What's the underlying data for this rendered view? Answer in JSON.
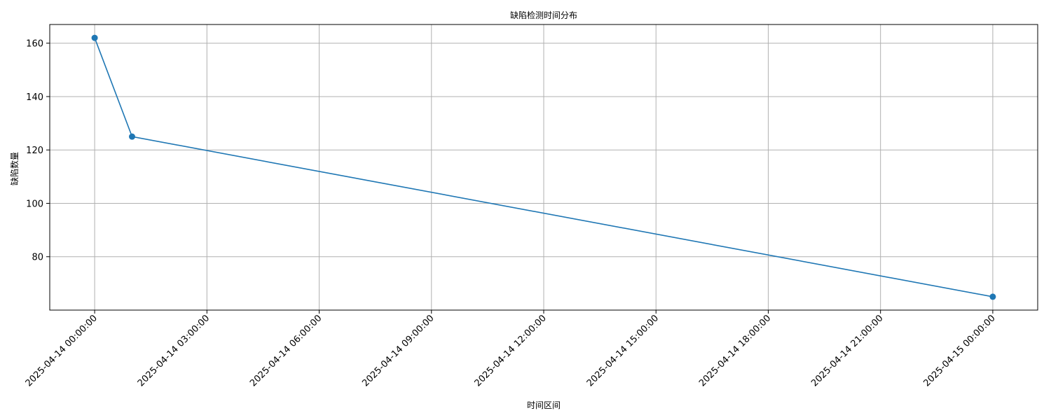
{
  "chart_data": {
    "type": "line",
    "title": "缺陷检测时间分布",
    "xlabel": "时间区间",
    "ylabel": "缺陷数量",
    "x": [
      "2025-04-14 00:00:00",
      "2025-04-14 01:00:00",
      "2025-04-15 00:00:00"
    ],
    "values": [
      162,
      125,
      65
    ],
    "x_ticks": [
      "2025-04-14 00:00:00",
      "2025-04-14 03:00:00",
      "2025-04-14 06:00:00",
      "2025-04-14 09:00:00",
      "2025-04-14 12:00:00",
      "2025-04-14 15:00:00",
      "2025-04-14 18:00:00",
      "2025-04-14 21:00:00",
      "2025-04-15 00:00:00"
    ],
    "y_ticks": [
      80,
      100,
      120,
      140,
      160
    ],
    "xlim": [
      "2025-04-13 22:48:00",
      "2025-04-15 01:12:00"
    ],
    "ylim": [
      60,
      167
    ],
    "grid": true,
    "marker": "circle",
    "color": "#1f77b4"
  }
}
